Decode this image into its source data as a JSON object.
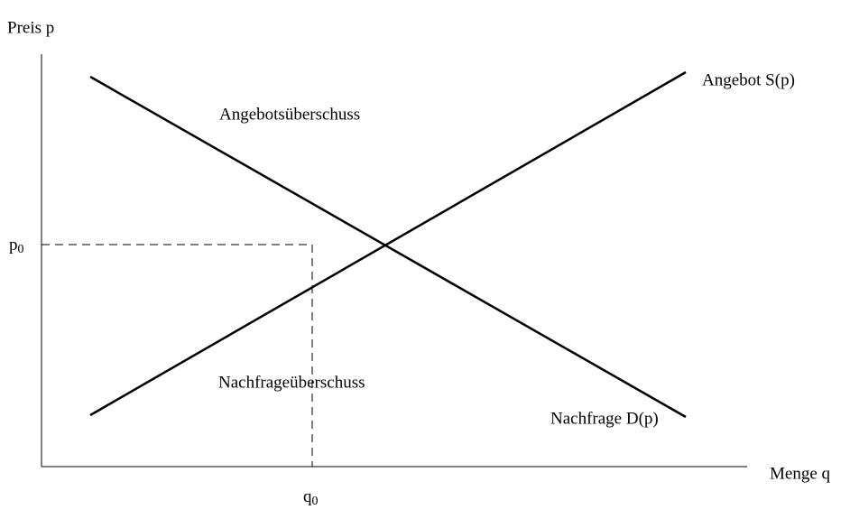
{
  "y_axis": {
    "label": "Preis p"
  },
  "x_axis": {
    "label": "Menge q"
  },
  "curves": {
    "supply": "Angebot S(p)",
    "demand": "Nachfrage D(p)"
  },
  "regions": {
    "upper": "Angebotsüberschuss",
    "lower": "Nachfrageüberschuss"
  },
  "equilibrium": {
    "price": {
      "symbol": "p",
      "subscript": "0"
    },
    "quantity": {
      "symbol": "q",
      "subscript": "0"
    }
  }
}
